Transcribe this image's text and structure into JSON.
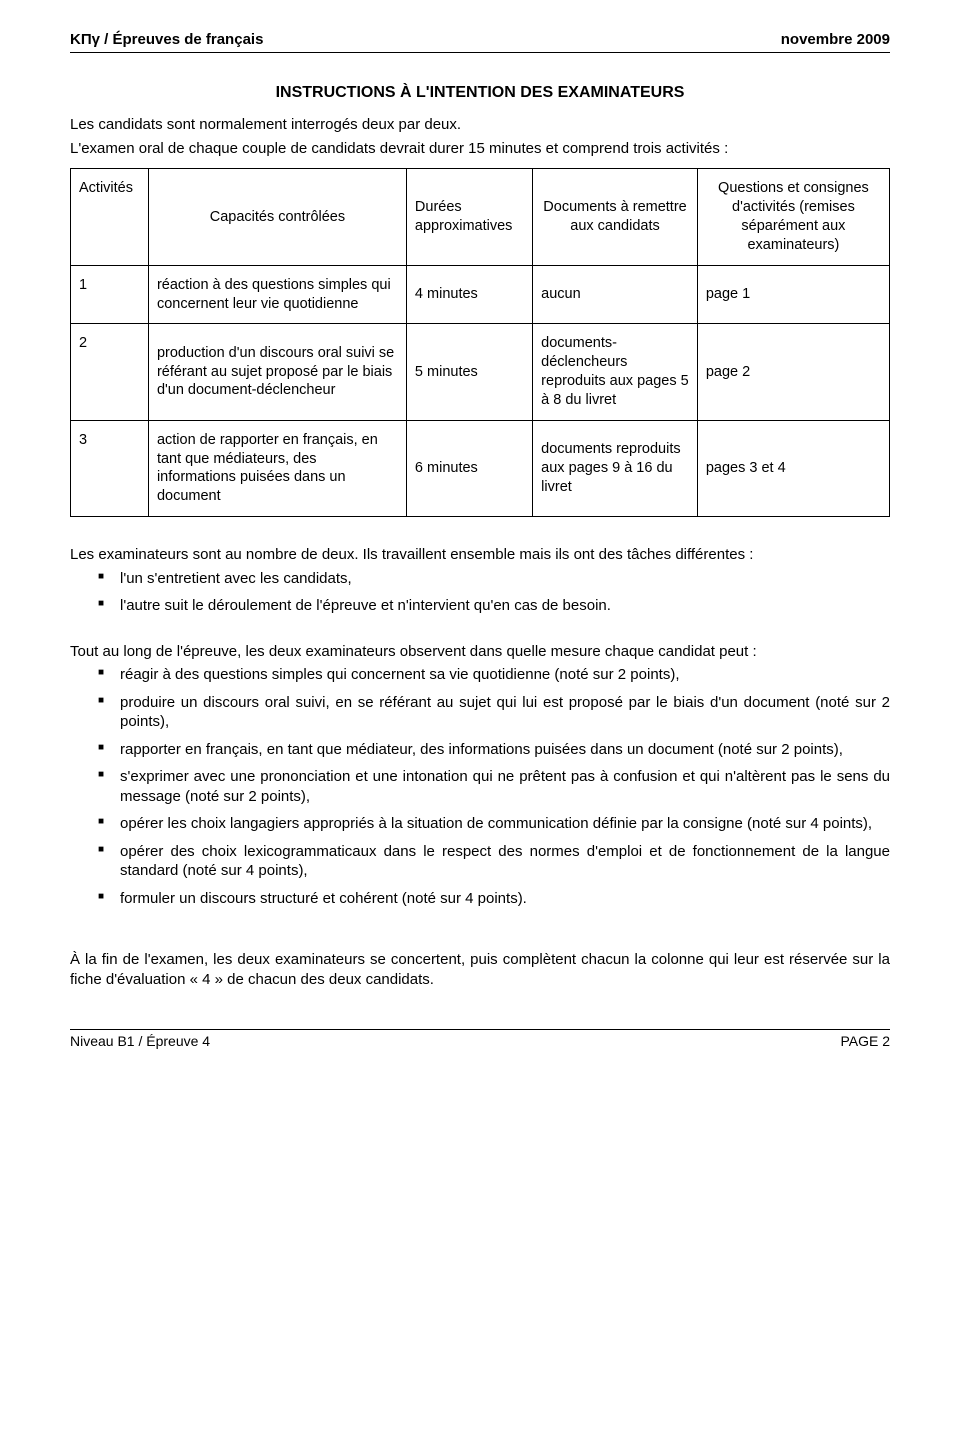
{
  "header": {
    "left": "ΚΠγ / Épreuves de français",
    "right": "novembre 2009"
  },
  "title": "INSTRUCTIONS À L'INTENTION DES EXAMINATEURS",
  "intro1": "Les candidats sont normalement interrogés deux par deux.",
  "intro2": "L'examen oral de chaque couple de candidats devrait durer 15 minutes et comprend trois activités :",
  "table": {
    "headers": {
      "c0": "Activités",
      "c1": "Capacités contrôlées",
      "c2": "Durées approximatives",
      "c3": "Documents à remettre aux candidats",
      "c4": "Questions et consignes d'activités (remises séparément aux examinateurs)"
    },
    "rows": [
      {
        "num": "1",
        "cap": "réaction à des questions simples qui concernent leur vie quotidienne",
        "dur": "4 minutes",
        "doc": "aucun",
        "q": "page 1"
      },
      {
        "num": "2",
        "cap": "production d'un discours oral suivi se référant au sujet proposé par le biais d'un document-déclencheur",
        "dur": "5 minutes",
        "doc": "documents-déclencheurs reproduits aux pages 5 à 8 du livret",
        "q": "page 2"
      },
      {
        "num": "3",
        "cap": "action de rapporter en français, en tant que médiateurs, des informations puisées dans un document",
        "dur": "6 minutes",
        "doc": "documents reproduits aux pages 9 à 16 du livret",
        "q": "pages 3 et 4"
      }
    ]
  },
  "examiners_intro": "Les examinateurs sont au nombre de deux. Ils travaillent ensemble mais ils ont des tâches différentes :",
  "examiners_bullets": [
    "l'un s'entretient avec les candidats,",
    "l'autre suit le déroulement de l'épreuve et n'intervient qu'en cas de besoin."
  ],
  "observe_intro": "Tout au long de l'épreuve, les deux examinateurs observent dans quelle mesure chaque candidat peut :",
  "observe_bullets": [
    "réagir à des questions simples qui concernent sa vie quotidienne (noté sur 2 points),",
    "produire un discours oral suivi, en se référant au sujet qui lui est proposé par le biais d'un document (noté sur 2 points),",
    "rapporter en français, en tant que médiateur, des informations puisées dans un document (noté sur 2 points),",
    "s'exprimer avec une prononciation et une intonation qui ne prêtent pas à confusion et qui n'altèrent pas le sens du message (noté sur 2 points),",
    "opérer les choix langagiers appropriés à la situation de communication définie par la consigne (noté sur 4 points),",
    "opérer des choix lexicogrammaticaux dans le respect des normes d'emploi et de fonctionnement de la langue standard (noté sur 4 points),",
    "formuler un discours structuré et cohérent (noté sur 4 points)."
  ],
  "closing": "À la fin de l'examen, les deux examinateurs se concertent, puis complètent chacun la colonne qui leur est réservée sur la fiche d'évaluation « 4 » de chacun des deux candidats.",
  "footer": {
    "left": "Niveau B1 / Épreuve 4",
    "right": "PAGE  2"
  }
}
